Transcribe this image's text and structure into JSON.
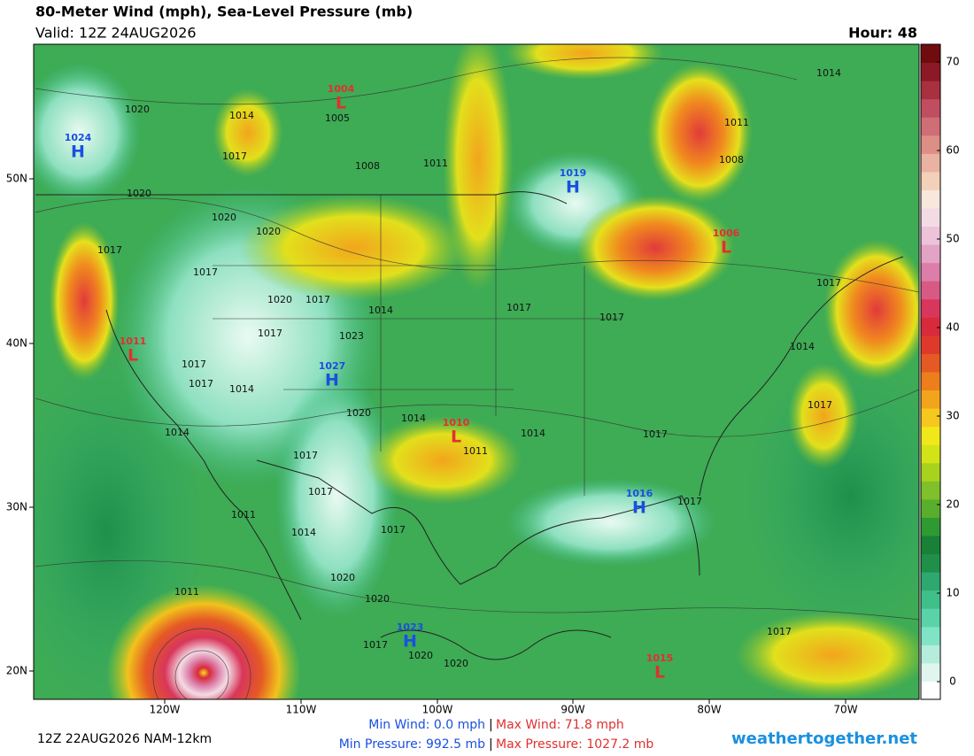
{
  "header": {
    "title": "80-Meter Wind (mph), Sea-Level Pressure (mb)",
    "valid": "Valid: 12Z 24AUG2026",
    "hour": "Hour: 48"
  },
  "map": {
    "lon_labels": [
      "120W",
      "110W",
      "100W",
      "90W",
      "80W",
      "70W"
    ],
    "lat_labels": [
      "50N",
      "40N",
      "30N",
      "20N"
    ],
    "pressure_centers": [
      {
        "symbol": "H",
        "value": "1024"
      },
      {
        "symbol": "L",
        "value": "1004"
      },
      {
        "symbol": "H",
        "value": "1019"
      },
      {
        "symbol": "L",
        "value": "1006"
      },
      {
        "symbol": "L",
        "value": "1011"
      },
      {
        "symbol": "H",
        "value": "1027"
      },
      {
        "symbol": "L",
        "value": "1010"
      },
      {
        "symbol": "H",
        "value": "1016"
      },
      {
        "symbol": "H",
        "value": "1023"
      },
      {
        "symbol": "L",
        "value": "1015"
      }
    ],
    "isobar_labels": [
      "1020",
      "1014",
      "1017",
      "1005",
      "1008",
      "1011",
      "1014",
      "1011",
      "1008",
      "1020",
      "1020",
      "1020",
      "1017",
      "1017",
      "1017",
      "1020",
      "1017",
      "1014",
      "1017",
      "1017",
      "1023",
      "1017",
      "1014",
      "1017",
      "1017",
      "1014",
      "1020",
      "1014",
      "1011",
      "1014",
      "1017",
      "1017",
      "1014",
      "1017",
      "1017",
      "1017",
      "1011",
      "1014",
      "1017",
      "1020",
      "1020",
      "1011",
      "1017",
      "1020",
      "1020",
      "1017"
    ]
  },
  "colorbar": {
    "lim": [
      -2,
      72
    ],
    "ticks": [
      0,
      10,
      20,
      30,
      40,
      50,
      60,
      70
    ],
    "colors": [
      "#ffffff",
      "#e0f5ee",
      "#b5ecdc",
      "#7fe3c5",
      "#5ad3a8",
      "#3fc08b",
      "#2ea86e",
      "#1f8f4a",
      "#198038",
      "#2f9a32",
      "#5aae2e",
      "#80c02a",
      "#a8d21e",
      "#d2e418",
      "#f0e81a",
      "#f6c81e",
      "#f2a51c",
      "#ec7f1c",
      "#e55a24",
      "#de3a2c",
      "#d92a3c",
      "#d8365a",
      "#d75a84",
      "#dc7ea8",
      "#e3a3c4",
      "#ecc3d8",
      "#f3dbe4",
      "#f7e7dc",
      "#f3d0b8",
      "#eab2a0",
      "#dd8f86",
      "#cf6e74",
      "#bf4e60",
      "#a8303f",
      "#8c1a26",
      "#700c10"
    ]
  },
  "footer": {
    "run": "12Z 22AUG2026 NAM-12km",
    "min_wind": "Min Wind:  0.0 mph",
    "max_wind": "Max Wind: 71.8 mph",
    "min_pressure": "Min Pressure: 992.5 mb",
    "max_pressure": "Max Pressure: 1027.2 mb",
    "site": "weathertogether.net"
  }
}
